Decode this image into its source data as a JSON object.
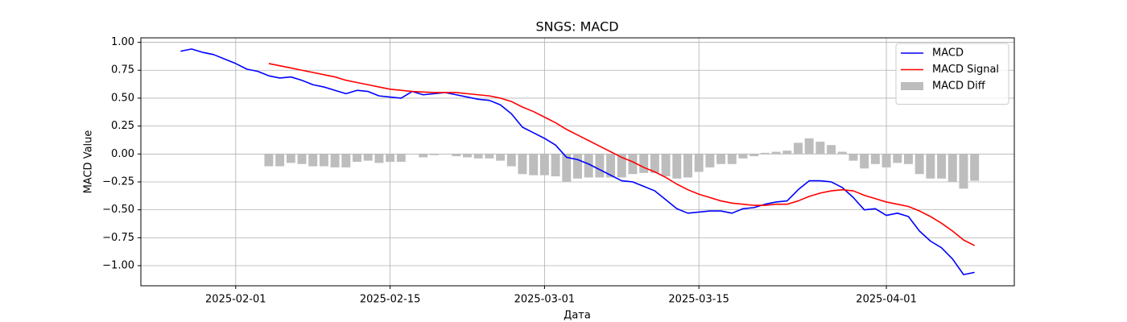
{
  "chart_data": {
    "type": "line",
    "title": "SNGS: MACD",
    "xlabel": "Дата",
    "ylabel": "MACD Value",
    "x": [
      "2025-01-27",
      "2025-01-28",
      "2025-01-29",
      "2025-01-30",
      "2025-01-31",
      "2025-02-01",
      "2025-02-02",
      "2025-02-03",
      "2025-02-04",
      "2025-02-05",
      "2025-02-06",
      "2025-02-07",
      "2025-02-08",
      "2025-02-09",
      "2025-02-10",
      "2025-02-11",
      "2025-02-12",
      "2025-02-13",
      "2025-02-14",
      "2025-02-15",
      "2025-02-16",
      "2025-02-17",
      "2025-02-18",
      "2025-02-19",
      "2025-02-20",
      "2025-02-21",
      "2025-02-22",
      "2025-02-23",
      "2025-02-24",
      "2025-02-25",
      "2025-02-26",
      "2025-02-27",
      "2025-02-28",
      "2025-03-01",
      "2025-03-02",
      "2025-03-03",
      "2025-03-04",
      "2025-03-05",
      "2025-03-06",
      "2025-03-07",
      "2025-03-08",
      "2025-03-09",
      "2025-03-10",
      "2025-03-11",
      "2025-03-12",
      "2025-03-13",
      "2025-03-14",
      "2025-03-15",
      "2025-03-16",
      "2025-03-17",
      "2025-03-18",
      "2025-03-19",
      "2025-03-20",
      "2025-03-21",
      "2025-03-22",
      "2025-03-23",
      "2025-03-24",
      "2025-03-25",
      "2025-03-26",
      "2025-03-27",
      "2025-03-28",
      "2025-03-29",
      "2025-03-30",
      "2025-03-31",
      "2025-04-01",
      "2025-04-02",
      "2025-04-03",
      "2025-04-04",
      "2025-04-05",
      "2025-04-06",
      "2025-04-07",
      "2025-04-08",
      "2025-04-09"
    ],
    "series": [
      {
        "name": "MACD",
        "type": "line",
        "color": "#0000ff",
        "values": [
          0.92,
          0.94,
          0.91,
          0.89,
          0.85,
          0.81,
          0.76,
          0.74,
          0.7,
          0.68,
          0.69,
          0.66,
          0.62,
          0.6,
          0.57,
          0.54,
          0.57,
          0.56,
          0.52,
          0.51,
          0.5,
          0.56,
          0.53,
          0.54,
          0.55,
          0.53,
          0.51,
          0.49,
          0.48,
          0.44,
          0.36,
          0.24,
          0.19,
          0.14,
          0.08,
          -0.03,
          -0.05,
          -0.09,
          -0.14,
          -0.19,
          -0.24,
          -0.25,
          -0.29,
          -0.33,
          -0.41,
          -0.49,
          -0.53,
          -0.52,
          -0.51,
          -0.51,
          -0.53,
          -0.49,
          -0.48,
          -0.45,
          -0.43,
          -0.42,
          -0.32,
          -0.24,
          -0.24,
          -0.25,
          -0.3,
          -0.39,
          -0.5,
          -0.49,
          -0.55,
          -0.53,
          -0.56,
          -0.69,
          -0.78,
          -0.84,
          -0.94,
          -1.08,
          -1.06
        ]
      },
      {
        "name": "MACD Signal",
        "type": "line",
        "color": "#ff0000",
        "values": [
          null,
          null,
          null,
          null,
          null,
          null,
          null,
          null,
          0.81,
          0.79,
          0.77,
          0.75,
          0.73,
          0.71,
          0.69,
          0.66,
          0.64,
          0.62,
          0.6,
          0.58,
          0.57,
          0.56,
          0.555,
          0.55,
          0.55,
          0.55,
          0.54,
          0.53,
          0.52,
          0.5,
          0.47,
          0.42,
          0.38,
          0.33,
          0.28,
          0.22,
          0.17,
          0.12,
          0.07,
          0.02,
          -0.03,
          -0.07,
          -0.12,
          -0.16,
          -0.21,
          -0.27,
          -0.32,
          -0.36,
          -0.39,
          -0.42,
          -0.44,
          -0.45,
          -0.46,
          -0.46,
          -0.45,
          -0.45,
          -0.42,
          -0.38,
          -0.35,
          -0.33,
          -0.32,
          -0.33,
          -0.37,
          -0.4,
          -0.43,
          -0.45,
          -0.47,
          -0.51,
          -0.56,
          -0.62,
          -0.69,
          -0.77,
          -0.82
        ]
      },
      {
        "name": "MACD Diff",
        "type": "bar",
        "color": "#bdbdbd",
        "values": [
          null,
          null,
          null,
          null,
          null,
          null,
          null,
          null,
          -0.11,
          -0.11,
          -0.08,
          -0.09,
          -0.11,
          -0.11,
          -0.12,
          -0.12,
          -0.07,
          -0.06,
          -0.08,
          -0.07,
          -0.07,
          0.0,
          -0.03,
          -0.01,
          0.0,
          -0.02,
          -0.03,
          -0.04,
          -0.04,
          -0.06,
          -0.11,
          -0.18,
          -0.19,
          -0.19,
          -0.2,
          -0.25,
          -0.22,
          -0.21,
          -0.21,
          -0.21,
          -0.21,
          -0.18,
          -0.17,
          -0.17,
          -0.2,
          -0.22,
          -0.21,
          -0.16,
          -0.12,
          -0.09,
          -0.09,
          -0.04,
          -0.02,
          0.01,
          0.02,
          0.03,
          0.1,
          0.14,
          0.11,
          0.08,
          0.02,
          -0.06,
          -0.13,
          -0.09,
          -0.12,
          -0.08,
          -0.09,
          -0.18,
          -0.22,
          -0.22,
          -0.25,
          -0.31,
          -0.24
        ]
      }
    ],
    "xlim": [
      "2025-01-23T09:36",
      "2025-04-12T14:24"
    ],
    "xticks": [
      "2025-02-01",
      "2025-02-15",
      "2025-03-01",
      "2025-03-15",
      "2025-04-01"
    ],
    "ylim": [
      -1.18,
      1.04
    ],
    "yticks": [
      {
        "value": -1,
        "label": "−1.00"
      },
      {
        "value": -0.75,
        "label": "−0.75"
      },
      {
        "value": -0.5,
        "label": "−0.50"
      },
      {
        "value": -0.25,
        "label": "−0.25"
      },
      {
        "value": 0,
        "label": "0.00"
      },
      {
        "value": 0.25,
        "label": "0.25"
      },
      {
        "value": 0.5,
        "label": "0.50"
      },
      {
        "value": 0.75,
        "label": "0.75"
      },
      {
        "value": 1,
        "label": "1.00"
      }
    ],
    "grid": true,
    "legend": "upper right"
  }
}
